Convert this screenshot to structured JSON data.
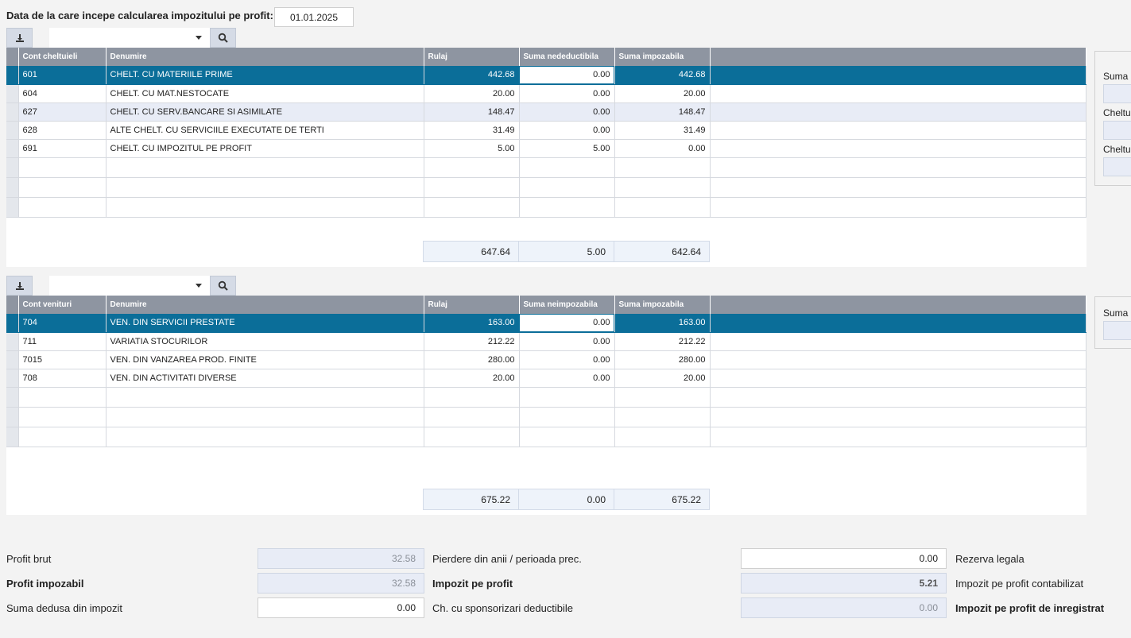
{
  "header": {
    "date_label": "Data de la care incepe calcularea impozitului pe profit:",
    "date_value": "01.01.2025"
  },
  "icons": {
    "export": "download-icon",
    "search": "search-icon",
    "dropdown": "caret-down-icon"
  },
  "colors": {
    "selected_row": "#0b6e99",
    "header_bg": "#8e95a1",
    "alt_row": "#e8ecf6"
  },
  "expenses": {
    "columns": [
      "Cont cheltuieli",
      "Denumire",
      "Rulaj",
      "Suma nedeductibila",
      "Suma impozabila"
    ],
    "rows": [
      {
        "cont": "601",
        "denumire": "CHELT. CU MATERIILE PRIME",
        "rulaj": "442.68",
        "nededuct": "0.00",
        "impoz": "442.68"
      },
      {
        "cont": "604",
        "denumire": "CHELT. CU MAT.NESTOCATE",
        "rulaj": "20.00",
        "nededuct": "0.00",
        "impoz": "20.00"
      },
      {
        "cont": "627",
        "denumire": "CHELT. CU SERV.BANCARE SI ASIMILATE",
        "rulaj": "148.47",
        "nededuct": "0.00",
        "impoz": "148.47"
      },
      {
        "cont": "628",
        "denumire": "ALTE CHELT. CU SERVICIILE EXECUTATE DE TERTI",
        "rulaj": "31.49",
        "nededuct": "0.00",
        "impoz": "31.49"
      },
      {
        "cont": "691",
        "denumire": "CHELT. CU IMPOZITUL PE PROFIT",
        "rulaj": "5.00",
        "nededuct": "5.00",
        "impoz": "0.00"
      }
    ],
    "totals": {
      "rulaj": "647.64",
      "nededuct": "5.00",
      "impoz": "642.64"
    },
    "side_labels": [
      "Suma r",
      "Cheltu",
      "Cheltu"
    ]
  },
  "revenues": {
    "columns": [
      "Cont venituri",
      "Denumire",
      "Rulaj",
      "Suma neimpozabila",
      "Suma impozabila"
    ],
    "rows": [
      {
        "cont": "704",
        "denumire": "VEN. DIN SERVICII PRESTATE",
        "rulaj": "163.00",
        "neimpoz": "0.00",
        "impoz": "163.00"
      },
      {
        "cont": "711",
        "denumire": "VARIATIA STOCURILOR",
        "rulaj": "212.22",
        "neimpoz": "0.00",
        "impoz": "212.22"
      },
      {
        "cont": "7015",
        "denumire": "VEN. DIN VANZAREA PROD. FINITE",
        "rulaj": "280.00",
        "neimpoz": "0.00",
        "impoz": "280.00"
      },
      {
        "cont": "708",
        "denumire": "VEN. DIN ACTIVITATI DIVERSE",
        "rulaj": "20.00",
        "neimpoz": "0.00",
        "impoz": "20.00"
      }
    ],
    "totals": {
      "rulaj": "675.22",
      "neimpoz": "0.00",
      "impoz": "675.22"
    },
    "side_labels": [
      "Suma r"
    ]
  },
  "summary": {
    "profit_brut_label": "Profit brut",
    "profit_brut": "32.58",
    "profit_impozabil_label": "Profit impozabil",
    "profit_impozabil": "32.58",
    "suma_dedusa_label": "Suma dedusa din impozit",
    "suma_dedusa": "0.00",
    "pierdere_label": "Pierdere din anii / perioada prec.",
    "pierdere": "0.00",
    "impozit_label": "Impozit pe profit",
    "impozit": "5.21",
    "sponsorizari_label": "Ch. cu sponsorizari deductibile",
    "sponsorizari": "0.00",
    "rezerva_label": "Rezerva legala",
    "contabilizat_label": "Impozit pe profit contabilizat",
    "inregistrat_label": "Impozit pe profit de inregistrat"
  }
}
